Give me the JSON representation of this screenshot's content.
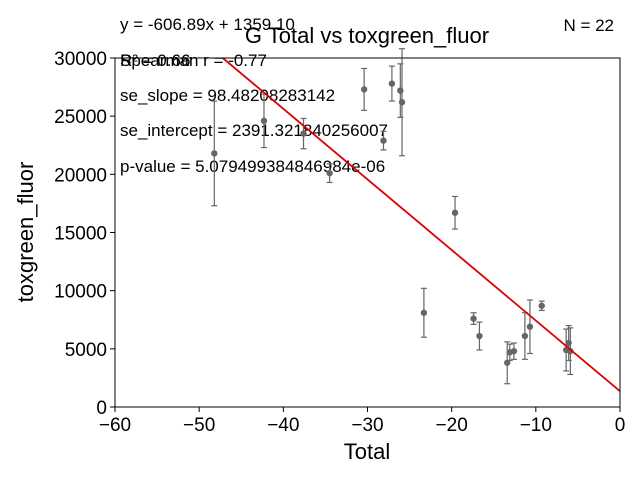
{
  "chart_data": {
    "type": "scatter",
    "title": "G Total vs toxgreen_fluor",
    "xlabel": "Total",
    "ylabel": "toxgreen_fluor",
    "xlim": [
      -60,
      0
    ],
    "ylim": [
      0,
      30000
    ],
    "xticks": [
      -60,
      -50,
      -40,
      -30,
      -20,
      -10,
      0
    ],
    "yticks": [
      0,
      5000,
      10000,
      15000,
      20000,
      25000,
      30000
    ],
    "xtick_labels": [
      "−60",
      "−50",
      "−40",
      "−30",
      "−20",
      "−10",
      "0"
    ],
    "ytick_labels": [
      "0",
      "5000",
      "10000",
      "15000",
      "20000",
      "25000",
      "30000"
    ],
    "grid": false,
    "annotations": {
      "n_label": "N = 22",
      "equation": "y = -606.89x + 1359.10",
      "r2": "R² = 0.66",
      "spearman": "Spearman r = -0.77",
      "se_slope": "se_slope = 98.48208283142",
      "se_intercept": "se_intercept = 2391.321840256007",
      "p_value": "p-value = 5.079499384846984e-06"
    },
    "fit": {
      "slope": -606.89,
      "intercept": 1359.1,
      "color": "#dd0000"
    },
    "point_color": "#666666",
    "points": [
      {
        "x": -48.2,
        "y": 21800,
        "err": 4500
      },
      {
        "x": -42.3,
        "y": 24600,
        "err": 2300
      },
      {
        "x": -37.6,
        "y": 23500,
        "err": 1300
      },
      {
        "x": -34.5,
        "y": 20100,
        "err": 800
      },
      {
        "x": -30.4,
        "y": 27300,
        "err": 1800
      },
      {
        "x": -28.1,
        "y": 22900,
        "err": 800
      },
      {
        "x": -27.1,
        "y": 27800,
        "err": 1500
      },
      {
        "x": -26.1,
        "y": 27200,
        "err": 2300
      },
      {
        "x": -25.9,
        "y": 26200,
        "err": 4600
      },
      {
        "x": -23.3,
        "y": 8100,
        "err": 2100
      },
      {
        "x": -19.6,
        "y": 16700,
        "err": 1400
      },
      {
        "x": -17.4,
        "y": 7600,
        "err": 500
      },
      {
        "x": -16.7,
        "y": 6100,
        "err": 1200
      },
      {
        "x": -13.4,
        "y": 3800,
        "err": 1800
      },
      {
        "x": -13.1,
        "y": 4700,
        "err": 700
      },
      {
        "x": -12.6,
        "y": 4800,
        "err": 700
      },
      {
        "x": -11.3,
        "y": 6100,
        "err": 2000
      },
      {
        "x": -10.7,
        "y": 6900,
        "err": 2300
      },
      {
        "x": -9.3,
        "y": 8700,
        "err": 400
      },
      {
        "x": -6.4,
        "y": 4900,
        "err": 1800
      },
      {
        "x": -6.1,
        "y": 5500,
        "err": 1500
      },
      {
        "x": -5.9,
        "y": 4800,
        "err": 2000
      }
    ]
  }
}
